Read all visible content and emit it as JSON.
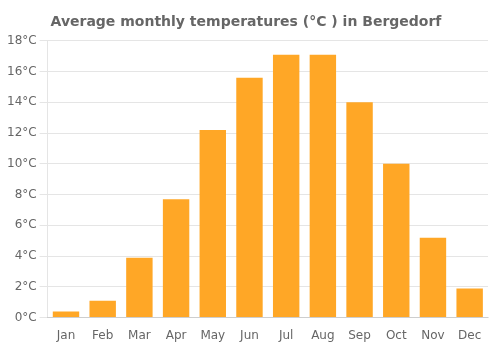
{
  "chart_data": {
    "type": "bar",
    "title": "Average monthly temperatures (°C ) in Bergedorf",
    "categories": [
      "Jan",
      "Feb",
      "Mar",
      "Apr",
      "May",
      "Jun",
      "Jul",
      "Aug",
      "Sep",
      "Oct",
      "Nov",
      "Dec"
    ],
    "values": [
      0.4,
      1.1,
      3.9,
      7.7,
      12.2,
      15.6,
      17.1,
      17.1,
      14.0,
      10.0,
      5.2,
      1.9
    ],
    "color": "#FFA726",
    "ylim": [
      0,
      18
    ],
    "yticks": [
      {
        "value": 0,
        "label": "0°C"
      },
      {
        "value": 2,
        "label": "2°C"
      },
      {
        "value": 4,
        "label": "4°C"
      },
      {
        "value": 6,
        "label": "6°C"
      },
      {
        "value": 8,
        "label": "8°C"
      },
      {
        "value": 10,
        "label": "10°C"
      },
      {
        "value": 12,
        "label": "12°C"
      },
      {
        "value": 14,
        "label": "14°C"
      },
      {
        "value": 16,
        "label": "16°C"
      },
      {
        "value": 18,
        "label": "18°C"
      }
    ],
    "grid": true
  }
}
